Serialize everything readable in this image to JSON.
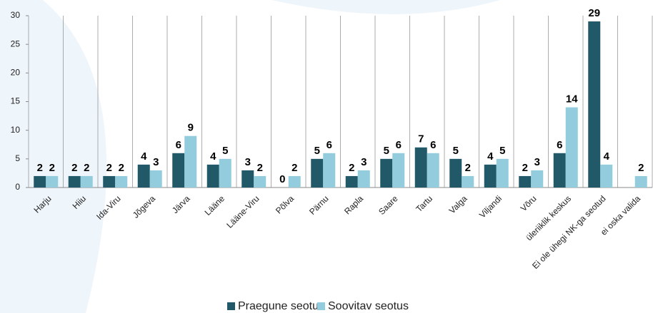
{
  "chart_data": {
    "type": "bar",
    "categories": [
      "Harju",
      "Hiiu",
      "Ida-Viru",
      "Jõgeva",
      "Järva",
      "Lääne",
      "Lääne-Viru",
      "Põlva",
      "Pärnu",
      "Rapla",
      "Saare",
      "Tartu",
      "Valga",
      "Viljandi",
      "Võru",
      "üleriiklik keskus",
      "Ei ole ühegi NK-ga seotud",
      "ei oska valida"
    ],
    "series": [
      {
        "name": "Praegune seotus",
        "color": "#215968",
        "values": [
          2,
          2,
          2,
          4,
          6,
          4,
          3,
          0,
          5,
          2,
          5,
          7,
          5,
          4,
          2,
          6,
          29,
          null
        ]
      },
      {
        "name": "Soovitav seotus",
        "color": "#93cddd",
        "values": [
          2,
          2,
          2,
          3,
          9,
          5,
          2,
          2,
          6,
          3,
          6,
          6,
          2,
          5,
          3,
          14,
          4,
          2
        ]
      }
    ],
    "ylim": [
      0,
      30
    ],
    "yticks": [
      0,
      5,
      10,
      15,
      20,
      25,
      30
    ],
    "grid": true,
    "legend": "bottom"
  }
}
